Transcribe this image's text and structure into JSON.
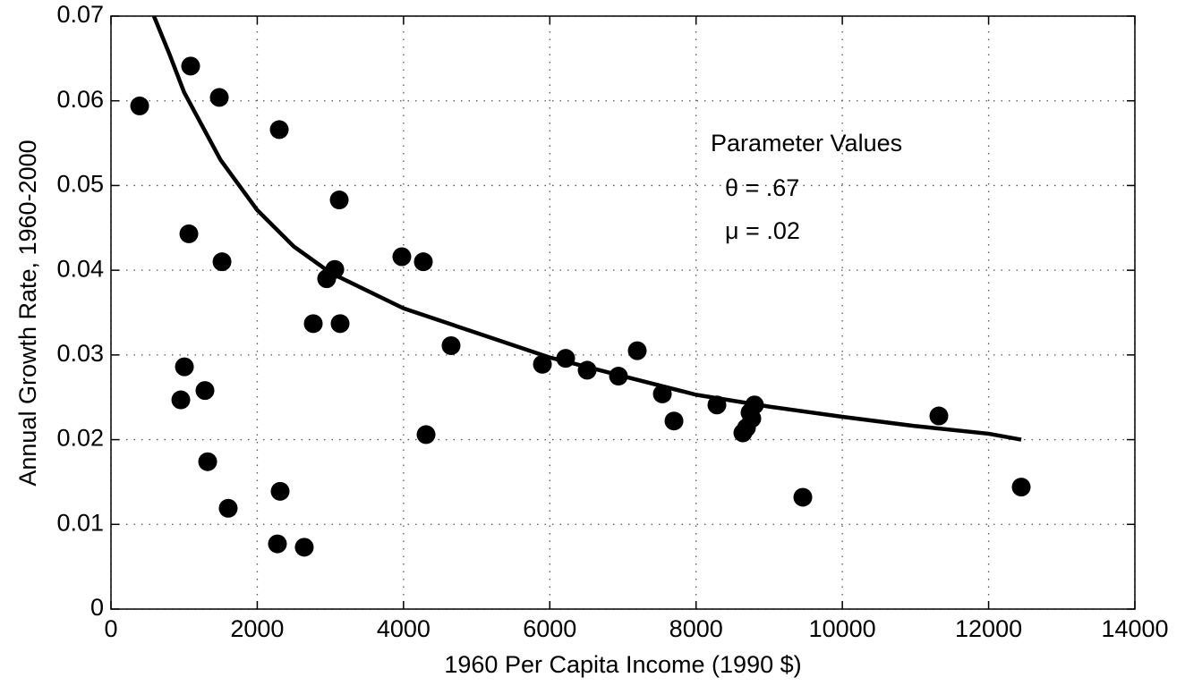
{
  "chart_data": {
    "type": "scatter",
    "xlabel": "1960 Per Capita Income (1990 $)",
    "ylabel": "Annual Growth Rate, 1960-2000",
    "annotations": [
      "Parameter Values",
      "θ = .67",
      "μ = .02"
    ],
    "xlim": [
      0,
      14000
    ],
    "xticks": [
      0,
      2000,
      4000,
      6000,
      8000,
      10000,
      12000,
      14000
    ],
    "ylim": [
      0,
      0.07
    ],
    "yticks": [
      0,
      0.01,
      0.02,
      0.03,
      0.04,
      0.05,
      0.06,
      0.07
    ],
    "grid": true,
    "series": [
      {
        "type": "scatter",
        "color": "#000000",
        "x": [
          392,
          1089,
          1481,
          2301,
          1065,
          3121,
          1518,
          3977,
          4271,
          3060,
          2949,
          2766,
          3133,
          4650,
          1004,
          955,
          1285,
          1322,
          1603,
          2313,
          2276,
          2643,
          4308,
          5899,
          6217,
          6511,
          6939,
          7196,
          7539,
          7698,
          8285,
          8799,
          8738,
          8762,
          8640,
          8689,
          9460,
          11320,
          12446
        ],
        "values": [
          0.0594,
          0.0641,
          0.0604,
          0.0566,
          0.0443,
          0.0483,
          0.041,
          0.0416,
          0.041,
          0.0401,
          0.039,
          0.0337,
          0.0337,
          0.0311,
          0.0286,
          0.0247,
          0.0258,
          0.0174,
          0.0119,
          0.0139,
          0.0077,
          0.0073,
          0.0206,
          0.0289,
          0.0296,
          0.0282,
          0.0275,
          0.0305,
          0.0254,
          0.0222,
          0.0241,
          0.0241,
          0.0232,
          0.0225,
          0.0208,
          0.0214,
          0.0132,
          0.0228,
          0.0144
        ]
      },
      {
        "type": "line",
        "color": "#000000",
        "x": [
          587,
          800,
          1000,
          1500,
          2000,
          2500,
          3000,
          4000,
          5000,
          6000,
          7000,
          8000,
          9000,
          10000,
          11000,
          12000,
          12446
        ],
        "values": [
          0.07,
          0.0655,
          0.061,
          0.053,
          0.0471,
          0.0428,
          0.0397,
          0.0355,
          0.0326,
          0.0297,
          0.0275,
          0.0253,
          0.0239,
          0.0227,
          0.0216,
          0.0207,
          0.02
        ]
      }
    ]
  }
}
